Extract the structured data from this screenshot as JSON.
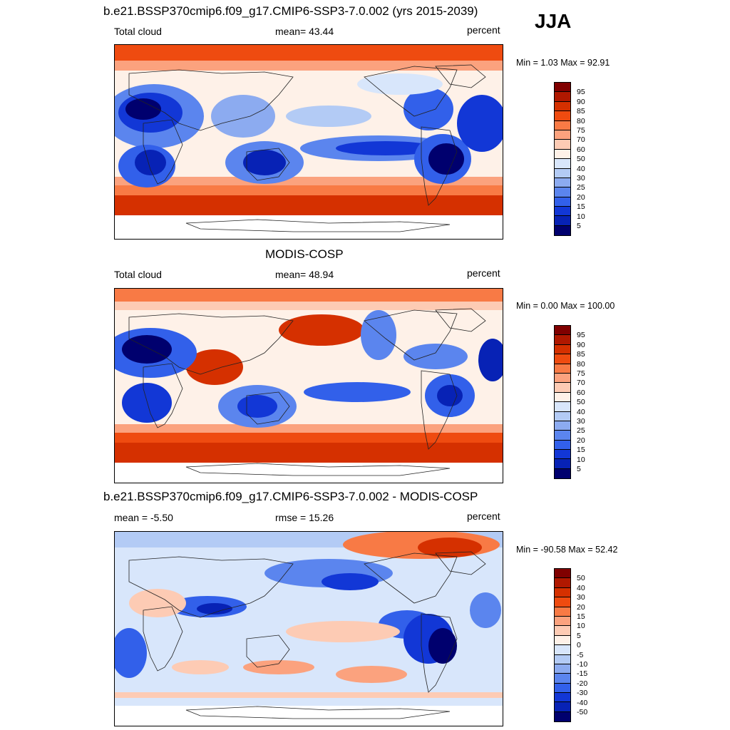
{
  "season": "JJA",
  "panels": [
    {
      "title": "b.e21.BSSP370cmip6.f09_g17.CMIP6-SSP3-7.0.002 (yrs 2015-2039)",
      "left_label": "Total cloud",
      "center_label": "mean=  43.44",
      "right_label": "percent",
      "minmax": "Min =    1.03 Max =  92.91",
      "mean_value": 43.44,
      "min_value": 1.03,
      "max_value": 92.91,
      "colorbar": {
        "levels": [
          "95",
          "90",
          "85",
          "80",
          "75",
          "70",
          "60",
          "50",
          "40",
          "30",
          "25",
          "20",
          "15",
          "10",
          "5"
        ],
        "colors": [
          "#800000",
          "#b01800",
          "#d53000",
          "#ef4b10",
          "#f87a45",
          "#fba27e",
          "#fdcbb4",
          "#fef1e8",
          "#d8e6fb",
          "#b3cbf5",
          "#8cabf0",
          "#5b85ee",
          "#3260ea",
          "#1237d6",
          "#0722b5",
          "#00006e"
        ]
      }
    },
    {
      "title": "MODIS-COSP",
      "left_label": "Total cloud",
      "center_label": "mean=  48.94",
      "right_label": "percent",
      "minmax": "Min =    0.00 Max = 100.00",
      "mean_value": 48.94,
      "min_value": 0.0,
      "max_value": 100.0,
      "colorbar": {
        "levels": [
          "95",
          "90",
          "85",
          "80",
          "75",
          "70",
          "60",
          "50",
          "40",
          "30",
          "25",
          "20",
          "15",
          "10",
          "5"
        ],
        "colors": [
          "#800000",
          "#b01800",
          "#d53000",
          "#ef4b10",
          "#f87a45",
          "#fba27e",
          "#fdcbb4",
          "#fef1e8",
          "#d8e6fb",
          "#b3cbf5",
          "#8cabf0",
          "#5b85ee",
          "#3260ea",
          "#1237d6",
          "#0722b5",
          "#00006e"
        ]
      }
    },
    {
      "title": "b.e21.BSSP370cmip6.f09_g17.CMIP6-SSP3-7.0.002 - MODIS-COSP",
      "left_label": "mean =  -5.50",
      "center_label": "rmse =  15.26",
      "right_label": "percent",
      "minmax": "Min = -90.58 Max =  52.42",
      "mean_value": -5.5,
      "rmse_value": 15.26,
      "min_value": -90.58,
      "max_value": 52.42,
      "colorbar": {
        "levels": [
          "50",
          "40",
          "30",
          "20",
          "15",
          "10",
          "5",
          "0",
          "-5",
          "-10",
          "-15",
          "-20",
          "-30",
          "-40",
          "-50"
        ],
        "colors": [
          "#800000",
          "#b01800",
          "#d53000",
          "#ef4b10",
          "#f87a45",
          "#fba27e",
          "#fdcbb4",
          "#fef1e8",
          "#d8e6fb",
          "#b3cbf5",
          "#8cabf0",
          "#5b85ee",
          "#3260ea",
          "#1237d6",
          "#0722b5",
          "#00006e"
        ]
      }
    }
  ]
}
